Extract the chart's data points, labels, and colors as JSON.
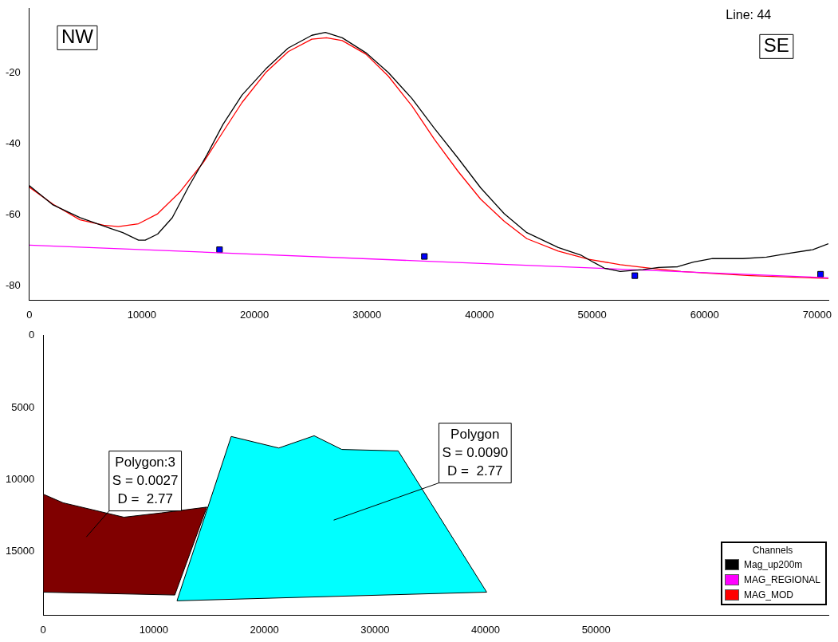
{
  "chart_data": [
    {
      "type": "line",
      "xlim": [
        0,
        71000
      ],
      "xticks": [
        0,
        10000,
        20000,
        30000,
        40000,
        50000,
        60000,
        70000
      ],
      "ylim": [
        -84,
        -2
      ],
      "yticks": [
        -80,
        -60,
        -40,
        -20
      ],
      "grid": false,
      "marker": "none",
      "legend": "bottom right",
      "legend_title": "Channels",
      "annotations": [
        "NW",
        "SE",
        "Line: 44"
      ],
      "series": [
        {
          "name": "Mag_up200m",
          "color": "#000000",
          "x": [
            0,
            2100,
            4500,
            7300,
            8300,
            9700,
            10300,
            11400,
            12700,
            14100,
            15800,
            17200,
            18900,
            21000,
            23000,
            25100,
            26300,
            27800,
            29900,
            31900,
            34000,
            36000,
            38100,
            40100,
            42200,
            44200,
            47000,
            49000,
            50100,
            51100,
            52500,
            54500,
            55900,
            57600,
            59000,
            60700,
            63400,
            65500,
            67500,
            69600,
            71000
          ],
          "values": [
            -51.8,
            -57.2,
            -60.8,
            -63.9,
            -65,
            -67.1,
            -67.1,
            -65.4,
            -60.8,
            -52.4,
            -43,
            -34.6,
            -26.3,
            -19,
            -13.1,
            -9.5,
            -8.7,
            -10.2,
            -14.4,
            -20,
            -27.3,
            -35.7,
            -44.1,
            -52.4,
            -59.7,
            -65,
            -69.2,
            -71.3,
            -73.3,
            -75,
            -75.9,
            -75.4,
            -74.8,
            -74.6,
            -73.3,
            -72.3,
            -72.3,
            -71.9,
            -70.8,
            -69.8,
            -68.1
          ]
        },
        {
          "name": "MAG_REGIONAL",
          "color": "#ff00ff",
          "x": [
            0,
            35000,
            71000
          ],
          "values": [
            -68.5,
            -73,
            -77.7
          ]
        },
        {
          "name": "MAG_MOD",
          "color": "#ff0000",
          "x": [
            0,
            2100,
            4500,
            6600,
            7900,
            9700,
            11400,
            13400,
            15500,
            17200,
            18900,
            21000,
            23000,
            25100,
            26400,
            27800,
            29900,
            31900,
            34000,
            36000,
            38100,
            40100,
            42200,
            44200,
            47000,
            49700,
            52500,
            55200,
            57900,
            60700,
            64100,
            67500,
            71000
          ],
          "values": [
            -52.2,
            -57,
            -61.4,
            -62.9,
            -63.3,
            -62.5,
            -59.7,
            -53.5,
            -45.1,
            -36.7,
            -28.4,
            -20,
            -14.1,
            -10.6,
            -10.2,
            -11,
            -14.8,
            -21,
            -29.4,
            -38.8,
            -47.8,
            -55.6,
            -61.8,
            -66.7,
            -70.2,
            -72.5,
            -74,
            -75,
            -75.9,
            -76.5,
            -77.1,
            -77.5,
            -77.9
          ]
        },
        {
          "type": "scatter",
          "color": "#0000ff",
          "marker": "square",
          "x": [
            16900,
            35100,
            53800,
            70300
          ],
          "values": [
            -69.8,
            -71.7,
            -77.1,
            -76.7
          ]
        }
      ]
    },
    {
      "type": "area",
      "xlim": [
        0,
        71000
      ],
      "xticks": [
        0,
        10000,
        20000,
        30000,
        40000,
        50000
      ],
      "ylim": [
        19400,
        0
      ],
      "yticks": [
        0,
        5000,
        10000,
        15000
      ],
      "grid": false,
      "annotations": [
        "Polygon:3\nS = 0.0027\nD =  2.77",
        "Polygon\nS = 0.0090\nD =  2.77"
      ],
      "series": [
        {
          "color": "#800000",
          "x": [
            0,
            1800,
            7300,
            10700,
            14800,
            11900,
            0,
            0
          ],
          "values": [
            11000,
            11600,
            12600,
            12300,
            11900,
            18000,
            17800,
            11000
          ]
        },
        {
          "color": "#00ffff",
          "x": [
            17000,
            21300,
            24500,
            27000,
            32100,
            40100,
            12100,
            17000
          ],
          "values": [
            7000,
            7800,
            6950,
            7900,
            8000,
            17800,
            18400,
            7000
          ]
        }
      ]
    }
  ]
}
